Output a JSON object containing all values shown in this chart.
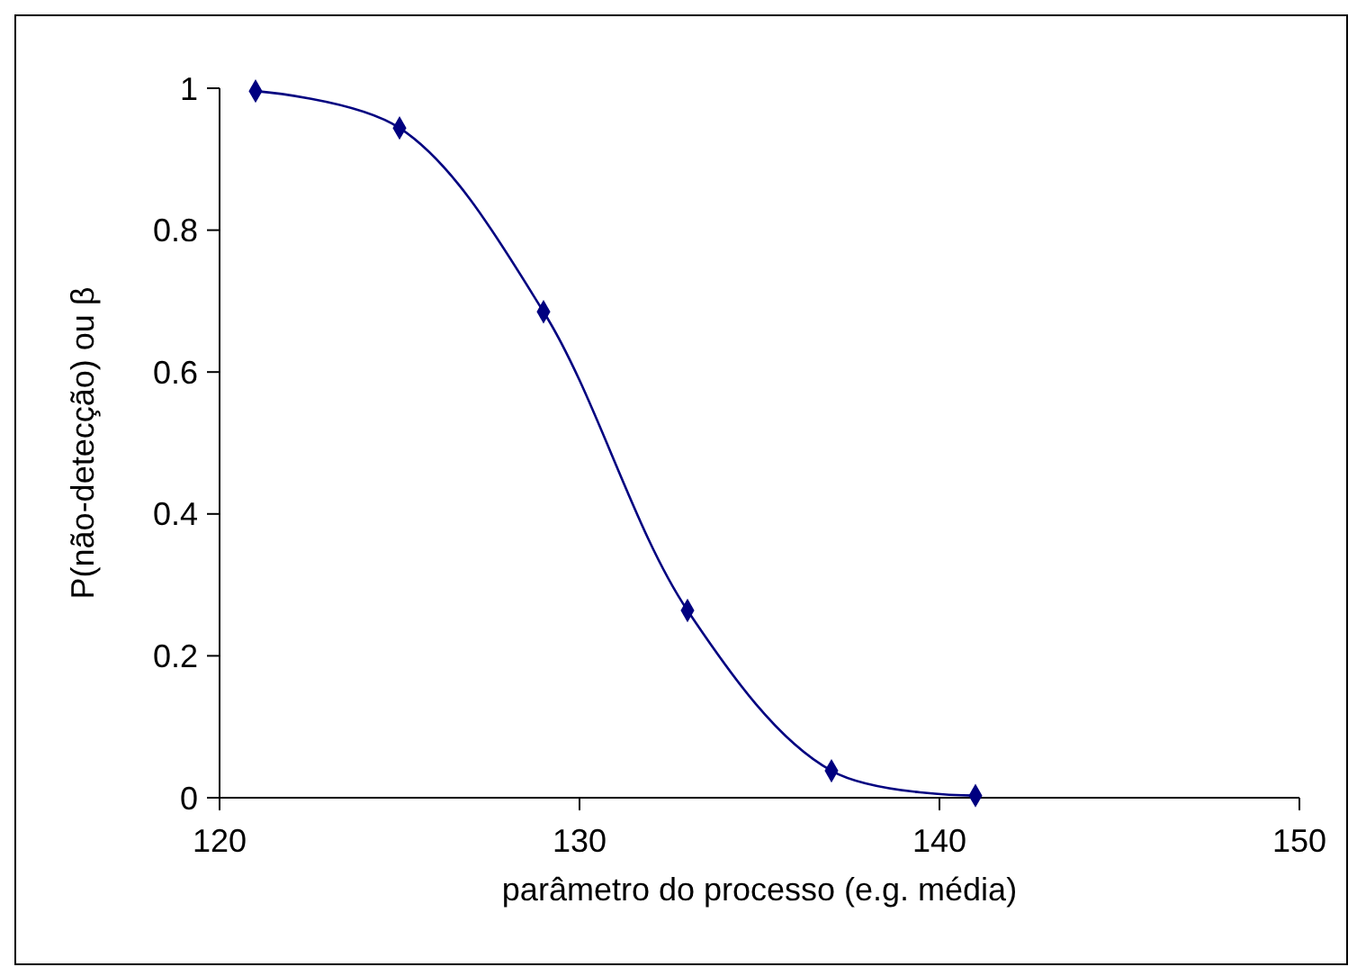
{
  "chart_data": {
    "type": "line",
    "xlabel": "parâmetro do processo (e.g. média)",
    "ylabel": "P(não-detecção) ou β",
    "x": [
      121,
      125,
      129,
      133,
      137,
      141
    ],
    "series": [
      {
        "color": "#000080",
        "values": [
          0.996,
          0.944,
          0.685,
          0.264,
          0.038,
          0.003
        ]
      }
    ],
    "xlim": [
      120,
      150
    ],
    "xticks": [
      120,
      130,
      140,
      150
    ],
    "ylim": [
      0,
      1
    ],
    "yticks": [
      0,
      0.2,
      0.4,
      0.6,
      0.8,
      1
    ],
    "marker": "diamond",
    "line_style": "solid"
  }
}
